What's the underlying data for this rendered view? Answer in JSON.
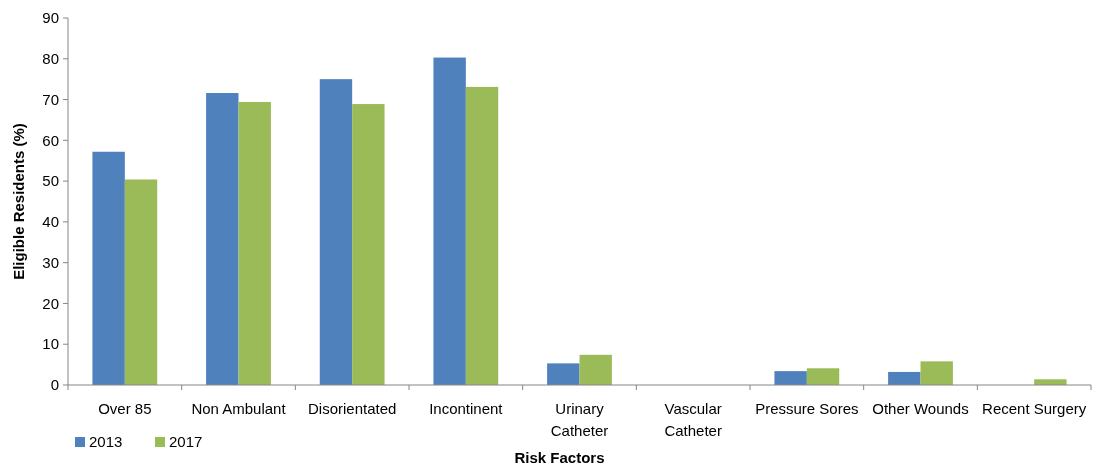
{
  "chart_data": {
    "type": "bar",
    "xlabel": "Risk Factors",
    "ylabel": "Eligible Residents (%)",
    "categories": [
      "Over 85",
      "Non Ambulant",
      "Disorientated",
      "Incontinent",
      "Urinary Catheter",
      "Vascular Catheter",
      "Pressure Sores",
      "Other Wounds",
      "Recent Surgery"
    ],
    "series": [
      {
        "name": "2013",
        "color": "#4f81bd",
        "values": [
          57.2,
          71.6,
          75.0,
          80.3,
          5.3,
          0,
          3.4,
          3.2,
          0
        ]
      },
      {
        "name": "2017",
        "color": "#9bbb59",
        "values": [
          50.4,
          69.4,
          68.9,
          73.1,
          7.4,
          0,
          4.1,
          5.8,
          1.4
        ]
      }
    ],
    "ylim": [
      0,
      90
    ],
    "yticks": [
      0,
      10,
      20,
      30,
      40,
      50,
      60,
      70,
      80,
      90
    ],
    "grid": false,
    "legend": "bottom left"
  }
}
